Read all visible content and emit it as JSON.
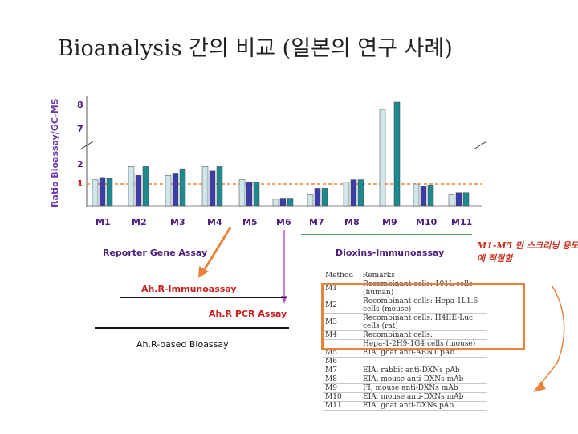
{
  "title": "Bioanalysis 간의 비교 (일본의 연구 사례)",
  "chart_data": {
    "type": "bar",
    "title": "",
    "ylabel": "Ratio Bioassay/GC-MS",
    "xlabel": "",
    "categories": [
      "M1",
      "M2",
      "M3",
      "M4",
      "M5",
      "M6",
      "M7",
      "M8",
      "M9",
      "M10",
      "M11"
    ],
    "yticks": [
      "8",
      "7",
      "2",
      "1"
    ],
    "axis_break": "between 2 and 7",
    "reference_line": 1,
    "series": [
      {
        "name": "series-1",
        "color": "#cfe6ea",
        "values": [
          1.2,
          1.8,
          1.4,
          1.8,
          1.2,
          0.3,
          0.5,
          1.1,
          7.8,
          1.0,
          0.5
        ]
      },
      {
        "name": "series-2",
        "color": "#3b3da8",
        "values": [
          1.3,
          1.4,
          1.5,
          1.6,
          1.1,
          0.35,
          0.8,
          1.2,
          null,
          0.9,
          0.6
        ]
      },
      {
        "name": "series-3",
        "color": "#1c8a8e",
        "values": [
          1.25,
          1.8,
          1.7,
          1.8,
          1.1,
          0.35,
          0.8,
          1.2,
          8.1,
          0.95,
          0.6
        ]
      }
    ]
  },
  "groups": {
    "reporter": "Reporter Gene Assay",
    "dioxins": "Dioxins-Immunoassay",
    "ahr_immuno": "Ah.R-Immunoassay",
    "ahr_pcr": "Ah.R PCR Assay",
    "ahr_based": "Ah.R-based Bioassay"
  },
  "note": "M1-M5 만 스크리닝 용도에 적절함",
  "remarks_table": {
    "headers": [
      "Method",
      "Remarks"
    ],
    "rows": [
      [
        "M1",
        "Recombinant cells: 101L cells (human)"
      ],
      [
        "M2",
        "Recombinant cells: Hepa-1L1.6 cells (mouse)"
      ],
      [
        "M3",
        "Recombinant cells: H4IIE-Luc cells (rat)"
      ],
      [
        "M4",
        "Recombinant cells:"
      ],
      [
        "",
        "Hepa-1-2H9-1G4 cells (mouse)"
      ],
      [
        "M5",
        "EIA, goat anti-ARNT pAb"
      ],
      [
        "M6",
        ""
      ],
      [
        "M7",
        "EIA, rabbit anti-DXNs pAb"
      ],
      [
        "M8",
        "EIA, mouse anti-DXNs mAb"
      ],
      [
        "M9",
        "FI, mouse anti-DXNs mAb"
      ],
      [
        "M10",
        "EIA, mouse anti-DXNs mAb"
      ],
      [
        "M11",
        "EIA, goat anti-DXNs pAb"
      ]
    ]
  },
  "colors": {
    "accent_orange": "#e8843a",
    "purple_text": "#4b1f7d",
    "red_text": "#cc1e1e",
    "group_green": "#2a8a3a"
  }
}
